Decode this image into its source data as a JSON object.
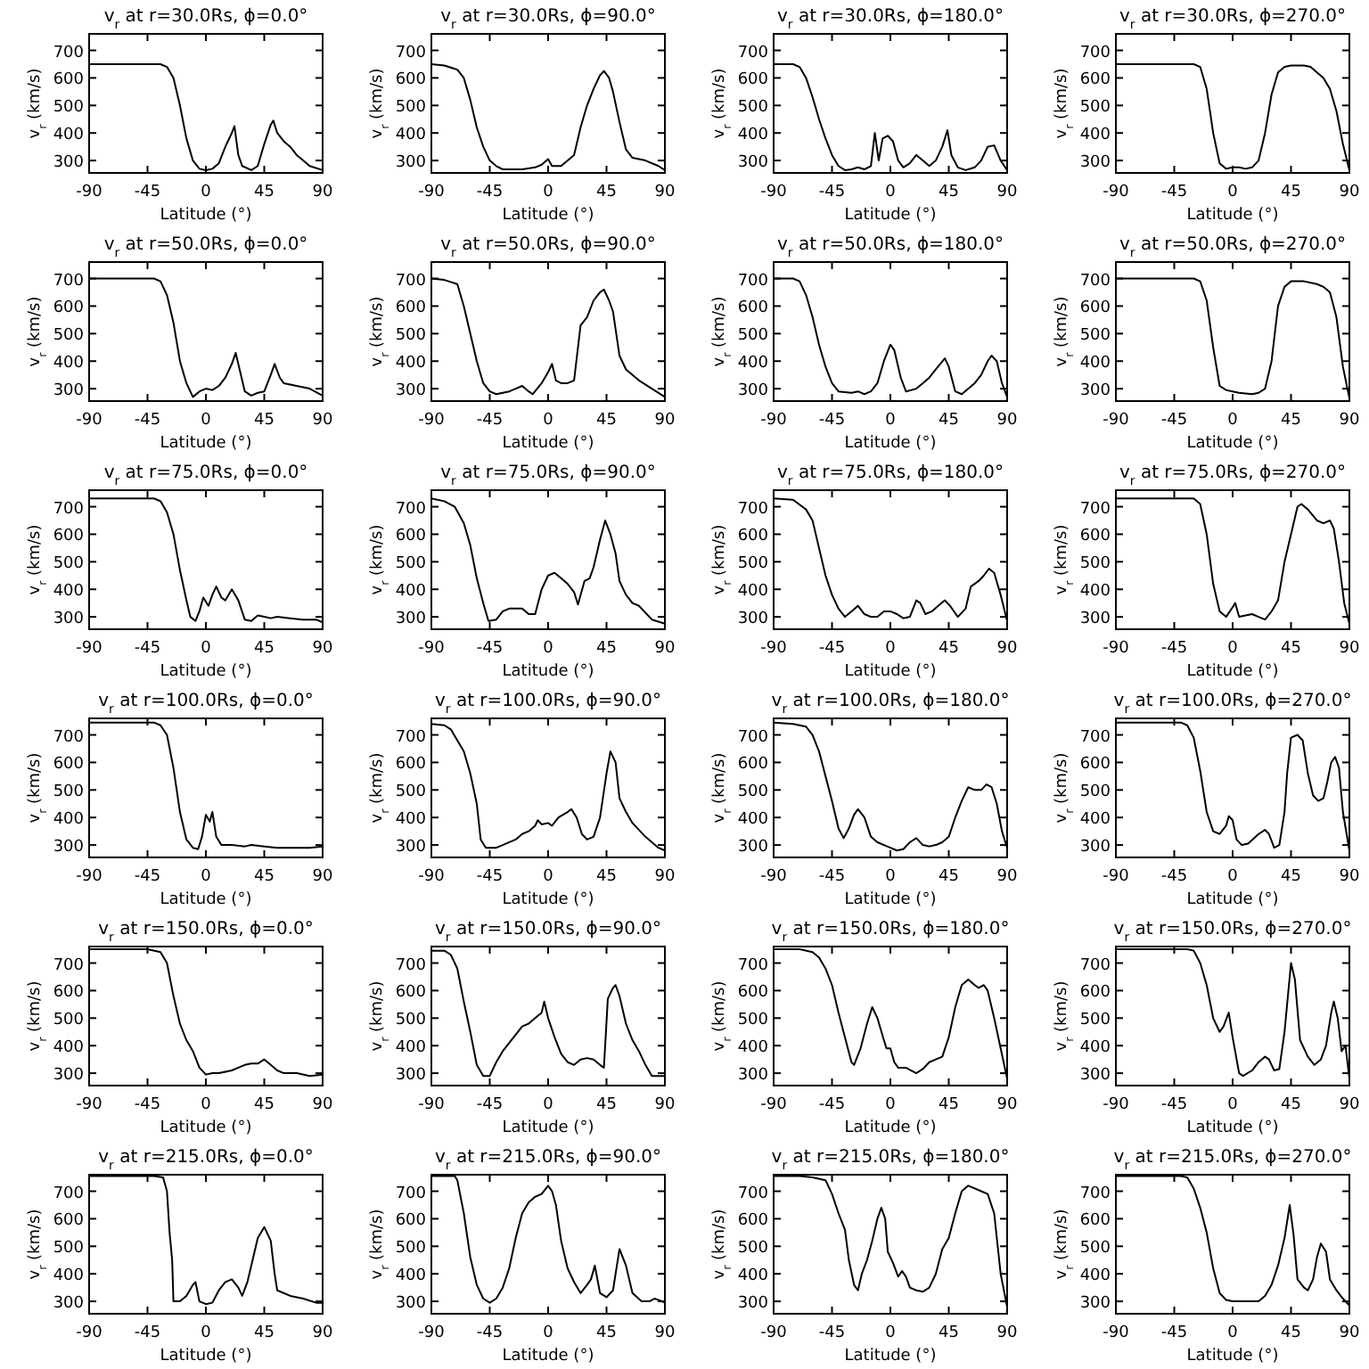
{
  "chart_data": [
    {
      "type": "line",
      "title": "v$_{r}$ at r=30.0Rs, ϕ=0.0°",
      "xlabel": "Latitude (°)",
      "ylabel": "v$_{r}$ (km/s)",
      "color": "#000000",
      "xlim": [
        -90,
        90
      ],
      "ylim": [
        255,
        760
      ],
      "xticks": [
        -90,
        -45,
        0,
        45,
        90
      ],
      "yticks": [
        300,
        400,
        500,
        600,
        700
      ],
      "x": [
        -90,
        -35,
        -30,
        -25,
        -20,
        -15,
        -10,
        -5,
        0,
        5,
        10,
        15,
        20,
        22,
        25,
        28,
        35,
        40,
        45,
        50,
        52,
        55,
        60,
        65,
        70,
        75,
        80,
        90
      ],
      "values": [
        650,
        650,
        640,
        600,
        500,
        380,
        300,
        270,
        265,
        270,
        290,
        350,
        400,
        425,
        320,
        280,
        265,
        280,
        360,
        430,
        445,
        400,
        370,
        350,
        320,
        300,
        280,
        265
      ]
    },
    {
      "type": "line",
      "title": "v$_{r}$ at r=30.0Rs, ϕ=90.0°",
      "xlabel": "Latitude (°)",
      "ylabel": "v$_{r}$ (km/s)",
      "color": "#000000",
      "xlim": [
        -90,
        90
      ],
      "ylim": [
        255,
        760
      ],
      "xticks": [
        -90,
        -45,
        0,
        45,
        90
      ],
      "yticks": [
        300,
        400,
        500,
        600,
        700
      ],
      "x": [
        -90,
        -80,
        -70,
        -65,
        -60,
        -55,
        -50,
        -45,
        -40,
        -35,
        -20,
        -10,
        -5,
        0,
        3,
        10,
        20,
        25,
        30,
        35,
        40,
        43,
        47,
        50,
        55,
        60,
        65,
        75,
        85,
        90
      ],
      "values": [
        650,
        645,
        630,
        600,
        520,
        420,
        350,
        300,
        280,
        268,
        268,
        275,
        285,
        305,
        280,
        280,
        320,
        420,
        500,
        560,
        610,
        625,
        600,
        550,
        440,
        340,
        310,
        300,
        280,
        265
      ]
    },
    {
      "type": "line",
      "title": "v$_{r}$ at r=30.0Rs, ϕ=180.0°",
      "xlabel": "Latitude (°)",
      "ylabel": "v$_{r}$ (km/s)",
      "color": "#000000",
      "xlim": [
        -90,
        90
      ],
      "ylim": [
        255,
        760
      ],
      "xticks": [
        -90,
        -45,
        0,
        45,
        90
      ],
      "yticks": [
        300,
        400,
        500,
        600,
        700
      ],
      "x": [
        -90,
        -75,
        -70,
        -65,
        -60,
        -55,
        -50,
        -45,
        -40,
        -35,
        -30,
        -25,
        -20,
        -15,
        -12,
        -9,
        -6,
        -2,
        2,
        6,
        10,
        15,
        20,
        25,
        30,
        35,
        40,
        44,
        47,
        52,
        58,
        65,
        70,
        75,
        80,
        85,
        90
      ],
      "values": [
        650,
        650,
        640,
        600,
        530,
        450,
        380,
        320,
        280,
        265,
        268,
        275,
        268,
        280,
        400,
        300,
        380,
        390,
        370,
        300,
        275,
        290,
        320,
        300,
        280,
        300,
        350,
        410,
        320,
        275,
        265,
        275,
        300,
        350,
        355,
        300,
        265
      ]
    },
    {
      "type": "line",
      "title": "v$_{r}$ at r=30.0Rs, ϕ=270.0°",
      "xlabel": "Latitude (°)",
      "ylabel": "v$_{r}$ (km/s)",
      "color": "#000000",
      "xlim": [
        -90,
        90
      ],
      "ylim": [
        255,
        760
      ],
      "xticks": [
        -90,
        -45,
        0,
        45,
        90
      ],
      "yticks": [
        300,
        400,
        500,
        600,
        700
      ],
      "x": [
        -90,
        -30,
        -25,
        -20,
        -15,
        -10,
        -5,
        0,
        5,
        10,
        15,
        20,
        25,
        30,
        35,
        40,
        45,
        55,
        60,
        65,
        70,
        75,
        80,
        85,
        90
      ],
      "values": [
        650,
        650,
        640,
        560,
        400,
        290,
        270,
        275,
        275,
        270,
        275,
        300,
        400,
        540,
        620,
        640,
        645,
        645,
        640,
        620,
        600,
        560,
        480,
        360,
        265
      ]
    },
    {
      "type": "line",
      "title": "v$_{r}$ at r=50.0Rs, ϕ=0.0°",
      "xlabel": "Latitude (°)",
      "ylabel": "v$_{r}$ (km/s)",
      "color": "#000000",
      "xlim": [
        -90,
        90
      ],
      "ylim": [
        255,
        760
      ],
      "xticks": [
        -90,
        -45,
        0,
        45,
        90
      ],
      "yticks": [
        300,
        400,
        500,
        600,
        700
      ],
      "x": [
        -90,
        -40,
        -35,
        -30,
        -25,
        -20,
        -15,
        -10,
        -5,
        0,
        5,
        10,
        15,
        20,
        23,
        26,
        30,
        35,
        40,
        45,
        50,
        53,
        57,
        60,
        70,
        80,
        90
      ],
      "values": [
        700,
        700,
        690,
        640,
        540,
        400,
        320,
        270,
        290,
        300,
        295,
        310,
        340,
        390,
        430,
        370,
        290,
        275,
        285,
        290,
        350,
        390,
        340,
        320,
        310,
        300,
        275
      ]
    },
    {
      "type": "line",
      "title": "v$_{r}$ at r=50.0Rs, ϕ=90.0°",
      "xlabel": "Latitude (°)",
      "ylabel": "v$_{r}$ (km/s)",
      "color": "#000000",
      "xlim": [
        -90,
        90
      ],
      "ylim": [
        255,
        760
      ],
      "xticks": [
        -90,
        -45,
        0,
        45,
        90
      ],
      "yticks": [
        300,
        400,
        500,
        600,
        700
      ],
      "x": [
        -90,
        -80,
        -70,
        -65,
        -60,
        -55,
        -50,
        -45,
        -40,
        -30,
        -25,
        -20,
        -15,
        -12,
        -5,
        0,
        3,
        6,
        10,
        15,
        20,
        25,
        30,
        35,
        40,
        43,
        47,
        50,
        55,
        60,
        70,
        80,
        90
      ],
      "values": [
        700,
        695,
        680,
        600,
        500,
        400,
        320,
        290,
        280,
        290,
        300,
        310,
        290,
        280,
        320,
        360,
        390,
        330,
        320,
        320,
        330,
        530,
        560,
        620,
        650,
        660,
        620,
        580,
        420,
        370,
        330,
        300,
        270
      ]
    },
    {
      "type": "line",
      "title": "v$_{r}$ at r=50.0Rs, ϕ=180.0°",
      "xlabel": "Latitude (°)",
      "ylabel": "v$_{r}$ (km/s)",
      "color": "#000000",
      "xlim": [
        -90,
        90
      ],
      "ylim": [
        255,
        760
      ],
      "xticks": [
        -90,
        -45,
        0,
        45,
        90
      ],
      "yticks": [
        300,
        400,
        500,
        600,
        700
      ],
      "x": [
        -90,
        -75,
        -70,
        -65,
        -60,
        -55,
        -50,
        -45,
        -40,
        -30,
        -25,
        -20,
        -15,
        -10,
        -5,
        0,
        3,
        8,
        12,
        20,
        25,
        30,
        35,
        42,
        45,
        50,
        55,
        65,
        70,
        75,
        78,
        82,
        86,
        90
      ],
      "values": [
        700,
        700,
        690,
        640,
        560,
        460,
        380,
        320,
        290,
        285,
        290,
        280,
        290,
        320,
        400,
        460,
        440,
        340,
        290,
        300,
        320,
        340,
        370,
        410,
        380,
        290,
        280,
        320,
        350,
        400,
        420,
        400,
        320,
        270
      ]
    },
    {
      "type": "line",
      "title": "v$_{r}$ at r=50.0Rs, ϕ=270.0°",
      "xlabel": "Latitude (°)",
      "ylabel": "v$_{r}$ (km/s)",
      "color": "#000000",
      "xlim": [
        -90,
        90
      ],
      "ylim": [
        255,
        760
      ],
      "xticks": [
        -90,
        -45,
        0,
        45,
        90
      ],
      "yticks": [
        300,
        400,
        500,
        600,
        700
      ],
      "x": [
        -90,
        -30,
        -25,
        -20,
        -15,
        -10,
        -5,
        0,
        5,
        15,
        20,
        25,
        30,
        35,
        40,
        45,
        55,
        65,
        70,
        75,
        80,
        85,
        90
      ],
      "values": [
        700,
        700,
        690,
        620,
        450,
        310,
        295,
        290,
        285,
        280,
        285,
        300,
        400,
        600,
        670,
        690,
        690,
        680,
        670,
        650,
        560,
        380,
        265
      ]
    },
    {
      "type": "line",
      "title": "v$_{r}$ at r=75.0Rs, ϕ=0.0°",
      "xlabel": "Latitude (°)",
      "ylabel": "v$_{r}$ (km/s)",
      "color": "#000000",
      "xlim": [
        -90,
        90
      ],
      "ylim": [
        255,
        760
      ],
      "xticks": [
        -90,
        -45,
        0,
        45,
        90
      ],
      "yticks": [
        300,
        400,
        500,
        600,
        700
      ],
      "x": [
        -90,
        -40,
        -35,
        -30,
        -25,
        -20,
        -15,
        -12,
        -8,
        -5,
        -2,
        2,
        5,
        8,
        12,
        15,
        20,
        25,
        30,
        35,
        40,
        45,
        50,
        55,
        65,
        75,
        85,
        90
      ],
      "values": [
        730,
        730,
        720,
        680,
        600,
        470,
        360,
        300,
        285,
        320,
        370,
        340,
        380,
        410,
        370,
        360,
        400,
        360,
        290,
        285,
        305,
        300,
        295,
        300,
        295,
        290,
        290,
        280
      ]
    },
    {
      "type": "line",
      "title": "v$_{r}$ at r=75.0Rs, ϕ=90.0°",
      "xlabel": "Latitude (°)",
      "ylabel": "v$_{r}$ (km/s)",
      "color": "#000000",
      "xlim": [
        -90,
        90
      ],
      "ylim": [
        255,
        760
      ],
      "xticks": [
        -90,
        -45,
        0,
        45,
        90
      ],
      "yticks": [
        300,
        400,
        500,
        600,
        700
      ],
      "x": [
        -90,
        -80,
        -72,
        -65,
        -60,
        -55,
        -50,
        -46,
        -40,
        -35,
        -30,
        -20,
        -15,
        -10,
        -5,
        0,
        5,
        10,
        15,
        20,
        23,
        28,
        32,
        35,
        40,
        44,
        48,
        52,
        55,
        60,
        65,
        70,
        80,
        90
      ],
      "values": [
        730,
        720,
        700,
        640,
        560,
        440,
        350,
        285,
        290,
        320,
        330,
        330,
        310,
        310,
        400,
        450,
        460,
        440,
        420,
        390,
        345,
        430,
        440,
        480,
        580,
        650,
        600,
        530,
        430,
        380,
        350,
        340,
        290,
        275
      ]
    },
    {
      "type": "line",
      "title": "v$_{r}$ at r=75.0Rs, ϕ=180.0°",
      "xlabel": "Latitude (°)",
      "ylabel": "v$_{r}$ (km/s)",
      "color": "#000000",
      "xlim": [
        -90,
        90
      ],
      "ylim": [
        255,
        760
      ],
      "xticks": [
        -90,
        -45,
        0,
        45,
        90
      ],
      "yticks": [
        300,
        400,
        500,
        600,
        700
      ],
      "x": [
        -90,
        -75,
        -65,
        -60,
        -55,
        -50,
        -45,
        -40,
        -35,
        -30,
        -25,
        -20,
        -15,
        -10,
        -5,
        0,
        5,
        10,
        15,
        20,
        23,
        27,
        32,
        38,
        42,
        46,
        52,
        58,
        62,
        68,
        72,
        76,
        80,
        85,
        90
      ],
      "values": [
        730,
        725,
        690,
        650,
        550,
        450,
        380,
        330,
        300,
        320,
        340,
        310,
        300,
        300,
        320,
        320,
        310,
        295,
        300,
        360,
        350,
        310,
        320,
        345,
        360,
        340,
        300,
        330,
        410,
        430,
        450,
        475,
        460,
        380,
        285
      ]
    },
    {
      "type": "line",
      "title": "v$_{r}$ at r=75.0Rs, ϕ=270.0°",
      "xlabel": "Latitude (°)",
      "ylabel": "v$_{r}$ (km/s)",
      "color": "#000000",
      "xlim": [
        -90,
        90
      ],
      "ylim": [
        255,
        760
      ],
      "xticks": [
        -90,
        -45,
        0,
        45,
        90
      ],
      "yticks": [
        300,
        400,
        500,
        600,
        700
      ],
      "x": [
        -90,
        -30,
        -25,
        -20,
        -15,
        -10,
        -5,
        0,
        2,
        5,
        10,
        15,
        20,
        25,
        30,
        35,
        40,
        45,
        50,
        53,
        58,
        65,
        70,
        75,
        78,
        82,
        86,
        90
      ],
      "values": [
        730,
        730,
        710,
        600,
        420,
        320,
        300,
        335,
        350,
        300,
        305,
        310,
        300,
        290,
        320,
        360,
        500,
        600,
        700,
        710,
        690,
        650,
        640,
        650,
        620,
        500,
        350,
        275
      ]
    },
    {
      "type": "line",
      "title": "v$_{r}$ at r=100.0Rs, ϕ=0.0°",
      "xlabel": "Latitude (°)",
      "ylabel": "v$_{r}$ (km/s)",
      "color": "#000000",
      "xlim": [
        -90,
        90
      ],
      "ylim": [
        255,
        760
      ],
      "xticks": [
        -90,
        -45,
        0,
        45,
        90
      ],
      "yticks": [
        300,
        400,
        500,
        600,
        700
      ],
      "x": [
        -90,
        -40,
        -35,
        -30,
        -25,
        -20,
        -15,
        -10,
        -6,
        -3,
        0,
        3,
        5,
        8,
        12,
        20,
        30,
        35,
        45,
        55,
        70,
        80,
        90
      ],
      "values": [
        745,
        745,
        735,
        700,
        580,
        420,
        320,
        290,
        285,
        330,
        410,
        385,
        420,
        330,
        300,
        300,
        295,
        300,
        295,
        290,
        290,
        290,
        295
      ]
    },
    {
      "type": "line",
      "title": "v$_{r}$ at r=100.0Rs, ϕ=90.0°",
      "xlabel": "Latitude (°)",
      "ylabel": "v$_{r}$ (km/s)",
      "color": "#000000",
      "xlim": [
        -90,
        90
      ],
      "ylim": [
        255,
        760
      ],
      "xticks": [
        -90,
        -45,
        0,
        45,
        90
      ],
      "yticks": [
        300,
        400,
        500,
        600,
        700
      ],
      "x": [
        -90,
        -80,
        -75,
        -70,
        -65,
        -60,
        -55,
        -52,
        -48,
        -40,
        -35,
        -25,
        -20,
        -15,
        -10,
        -8,
        -5,
        0,
        3,
        8,
        15,
        18,
        22,
        26,
        30,
        35,
        40,
        45,
        48,
        52,
        55,
        60,
        65,
        75,
        85,
        90
      ],
      "values": [
        740,
        735,
        720,
        680,
        640,
        560,
        450,
        320,
        290,
        290,
        300,
        320,
        340,
        350,
        370,
        390,
        375,
        380,
        370,
        400,
        420,
        430,
        400,
        340,
        320,
        330,
        400,
        560,
        640,
        600,
        470,
        420,
        380,
        330,
        290,
        280
      ]
    },
    {
      "type": "line",
      "title": "v$_{r}$ at r=100.0Rs, ϕ=180.0°",
      "xlabel": "Latitude (°)",
      "ylabel": "v$_{r}$ (km/s)",
      "color": "#000000",
      "xlim": [
        -90,
        90
      ],
      "ylim": [
        255,
        760
      ],
      "xticks": [
        -90,
        -45,
        0,
        45,
        90
      ],
      "yticks": [
        300,
        400,
        500,
        600,
        700
      ],
      "x": [
        -90,
        -75,
        -65,
        -60,
        -55,
        -50,
        -45,
        -40,
        -36,
        -32,
        -28,
        -25,
        -20,
        -15,
        -10,
        -5,
        0,
        5,
        10,
        15,
        20,
        25,
        30,
        35,
        40,
        45,
        50,
        55,
        60,
        65,
        70,
        74,
        78,
        82,
        86,
        90
      ],
      "values": [
        745,
        740,
        730,
        700,
        640,
        550,
        460,
        360,
        325,
        360,
        410,
        430,
        400,
        330,
        310,
        300,
        290,
        280,
        285,
        310,
        325,
        300,
        295,
        300,
        310,
        330,
        400,
        460,
        510,
        500,
        500,
        520,
        510,
        450,
        350,
        290
      ]
    },
    {
      "type": "line",
      "title": "v$_{r}$ at r=100.0Rs, ϕ=270.0°",
      "xlabel": "Latitude (°)",
      "ylabel": "v$_{r}$ (km/s)",
      "color": "#000000",
      "xlim": [
        -90,
        90
      ],
      "ylim": [
        255,
        760
      ],
      "xticks": [
        -90,
        -45,
        0,
        45,
        90
      ],
      "yticks": [
        300,
        400,
        500,
        600,
        700
      ],
      "x": [
        -90,
        -40,
        -35,
        -30,
        -25,
        -20,
        -15,
        -10,
        -5,
        -3,
        0,
        3,
        7,
        12,
        20,
        25,
        28,
        32,
        36,
        40,
        42,
        45,
        50,
        54,
        58,
        62,
        66,
        70,
        73,
        76,
        79,
        82,
        85,
        90
      ],
      "values": [
        745,
        745,
        735,
        690,
        570,
        420,
        350,
        340,
        370,
        405,
        390,
        320,
        300,
        305,
        340,
        355,
        340,
        290,
        300,
        420,
        560,
        690,
        700,
        680,
        560,
        480,
        460,
        470,
        530,
        600,
        620,
        580,
        420,
        280
      ]
    },
    {
      "type": "line",
      "title": "v$_{r}$ at r=150.0Rs, ϕ=0.0°",
      "xlabel": "Latitude (°)",
      "ylabel": "v$_{r}$ (km/s)",
      "color": "#000000",
      "xlim": [
        -90,
        90
      ],
      "ylim": [
        255,
        760
      ],
      "xticks": [
        -90,
        -45,
        0,
        45,
        90
      ],
      "yticks": [
        300,
        400,
        500,
        600,
        700
      ],
      "x": [
        -90,
        -45,
        -35,
        -30,
        -25,
        -20,
        -15,
        -10,
        -5,
        0,
        5,
        10,
        20,
        25,
        30,
        35,
        40,
        45,
        50,
        55,
        60,
        70,
        80,
        90
      ],
      "values": [
        750,
        750,
        740,
        700,
        580,
        480,
        420,
        380,
        320,
        295,
        300,
        300,
        310,
        320,
        330,
        335,
        335,
        350,
        330,
        310,
        300,
        300,
        290,
        295
      ]
    },
    {
      "type": "line",
      "title": "v$_{r}$ at r=150.0Rs, ϕ=90.0°",
      "xlabel": "Latitude (°)",
      "ylabel": "v$_{r}$ (km/s)",
      "color": "#000000",
      "xlim": [
        -90,
        90
      ],
      "ylim": [
        255,
        760
      ],
      "xticks": [
        -90,
        -45,
        0,
        45,
        90
      ],
      "yticks": [
        300,
        400,
        500,
        600,
        700
      ],
      "x": [
        -90,
        -80,
        -75,
        -70,
        -65,
        -60,
        -55,
        -50,
        -45,
        -40,
        -35,
        -30,
        -25,
        -20,
        -15,
        -10,
        -5,
        -3,
        0,
        5,
        10,
        15,
        20,
        25,
        30,
        35,
        40,
        43,
        46,
        50,
        52,
        55,
        60,
        65,
        70,
        75,
        80,
        90
      ],
      "values": [
        745,
        745,
        730,
        680,
        560,
        450,
        330,
        290,
        290,
        340,
        380,
        410,
        440,
        470,
        480,
        500,
        520,
        560,
        500,
        430,
        370,
        340,
        330,
        350,
        355,
        350,
        330,
        320,
        570,
        610,
        620,
        580,
        480,
        420,
        380,
        330,
        290,
        290
      ]
    },
    {
      "type": "line",
      "title": "v$_{r}$ at r=150.0Rs, ϕ=180.0°",
      "xlabel": "Latitude (°)",
      "ylabel": "v$_{r}$ (km/s)",
      "color": "#000000",
      "xlim": [
        -90,
        90
      ],
      "ylim": [
        255,
        760
      ],
      "xticks": [
        -90,
        -45,
        0,
        45,
        90
      ],
      "yticks": [
        300,
        400,
        500,
        600,
        700
      ],
      "x": [
        -90,
        -70,
        -60,
        -55,
        -50,
        -45,
        -40,
        -35,
        -30,
        -28,
        -23,
        -18,
        -14,
        -10,
        -5,
        -3,
        0,
        3,
        6,
        12,
        16,
        20,
        25,
        30,
        35,
        40,
        45,
        50,
        55,
        60,
        65,
        68,
        72,
        75,
        80,
        85,
        90
      ],
      "values": [
        750,
        750,
        740,
        720,
        680,
        620,
        520,
        430,
        340,
        330,
        390,
        480,
        540,
        500,
        420,
        390,
        390,
        340,
        320,
        320,
        310,
        300,
        315,
        340,
        350,
        360,
        430,
        540,
        620,
        640,
        620,
        610,
        620,
        600,
        500,
        390,
        280
      ]
    },
    {
      "type": "line",
      "title": "v$_{r}$ at r=150.0Rs, ϕ=270.0°",
      "xlabel": "Latitude (°)",
      "ylabel": "v$_{r}$ (km/s)",
      "color": "#000000",
      "xlim": [
        -90,
        90
      ],
      "ylim": [
        255,
        760
      ],
      "xticks": [
        -90,
        -45,
        0,
        45,
        90
      ],
      "yticks": [
        300,
        400,
        500,
        600,
        700
      ],
      "x": [
        -90,
        -35,
        -30,
        -25,
        -20,
        -15,
        -10,
        -7,
        -3,
        0,
        5,
        8,
        15,
        20,
        25,
        28,
        32,
        36,
        40,
        43,
        45,
        48,
        52,
        58,
        63,
        68,
        72,
        76,
        78,
        81,
        84,
        87,
        90
      ],
      "values": [
        750,
        750,
        745,
        700,
        620,
        500,
        450,
        470,
        520,
        430,
        300,
        290,
        310,
        340,
        360,
        350,
        310,
        315,
        450,
        600,
        700,
        640,
        420,
        360,
        330,
        350,
        400,
        520,
        560,
        500,
        380,
        400,
        280
      ]
    },
    {
      "type": "line",
      "title": "v$_{r}$ at r=215.0Rs, ϕ=0.0°",
      "xlabel": "Latitude (°)",
      "ylabel": "v$_{r}$ (km/s)",
      "color": "#000000",
      "xlim": [
        -90,
        90
      ],
      "ylim": [
        255,
        760
      ],
      "xticks": [
        -90,
        -45,
        0,
        45,
        90
      ],
      "yticks": [
        300,
        400,
        500,
        600,
        700
      ],
      "x": [
        -90,
        -40,
        -33,
        -30,
        -28,
        -26,
        -25,
        -20,
        -15,
        -10,
        -8,
        -5,
        0,
        5,
        10,
        15,
        20,
        25,
        28,
        32,
        35,
        40,
        45,
        50,
        53,
        55,
        65,
        75,
        85,
        90
      ],
      "values": [
        755,
        755,
        750,
        700,
        550,
        450,
        300,
        300,
        320,
        360,
        370,
        300,
        290,
        295,
        340,
        370,
        380,
        350,
        320,
        370,
        430,
        530,
        570,
        520,
        400,
        340,
        320,
        310,
        295,
        295
      ]
    },
    {
      "type": "line",
      "title": "v$_{r}$ at r=215.0Rs, ϕ=90.0°",
      "xlabel": "Latitude (°)",
      "ylabel": "v$_{r}$ (km/s)",
      "color": "#000000",
      "xlim": [
        -90,
        90
      ],
      "ylim": [
        255,
        760
      ],
      "xticks": [
        -90,
        -45,
        0,
        45,
        90
      ],
      "yticks": [
        300,
        400,
        500,
        600,
        700
      ],
      "x": [
        -90,
        -72,
        -70,
        -65,
        -60,
        -55,
        -50,
        -45,
        -40,
        -35,
        -30,
        -25,
        -20,
        -15,
        -10,
        -5,
        0,
        3,
        6,
        10,
        15,
        20,
        25,
        30,
        33,
        36,
        40,
        45,
        50,
        55,
        60,
        65,
        72,
        78,
        82,
        88,
        90
      ],
      "values": [
        755,
        755,
        740,
        620,
        460,
        360,
        310,
        295,
        310,
        350,
        420,
        530,
        620,
        660,
        680,
        690,
        720,
        700,
        650,
        520,
        420,
        370,
        330,
        360,
        380,
        430,
        330,
        315,
        340,
        490,
        430,
        330,
        300,
        300,
        310,
        300,
        295
      ]
    },
    {
      "type": "line",
      "title": "v$_{r}$ at r=215.0Rs, ϕ=180.0°",
      "xlabel": "Latitude (°)",
      "ylabel": "v$_{r}$ (km/s)",
      "color": "#000000",
      "xlim": [
        -90,
        90
      ],
      "ylim": [
        255,
        760
      ],
      "xticks": [
        -90,
        -45,
        0,
        45,
        90
      ],
      "yticks": [
        300,
        400,
        500,
        600,
        700
      ],
      "x": [
        -90,
        -70,
        -60,
        -50,
        -45,
        -40,
        -35,
        -32,
        -28,
        -25,
        -22,
        -18,
        -14,
        -10,
        -7,
        -4,
        -2,
        2,
        6,
        9,
        12,
        15,
        20,
        25,
        30,
        35,
        40,
        45,
        50,
        55,
        60,
        65,
        70,
        75,
        80,
        85,
        90
      ],
      "values": [
        755,
        755,
        750,
        740,
        690,
        620,
        560,
        450,
        360,
        340,
        400,
        450,
        520,
        600,
        640,
        600,
        480,
        440,
        390,
        410,
        390,
        350,
        340,
        335,
        350,
        400,
        490,
        530,
        620,
        700,
        720,
        710,
        700,
        690,
        620,
        400,
        280
      ]
    },
    {
      "type": "line",
      "title": "v$_{r}$ at r=215.0Rs, ϕ=270.0°",
      "xlabel": "Latitude (°)",
      "ylabel": "v$_{r}$ (km/s)",
      "color": "#000000",
      "xlim": [
        -90,
        90
      ],
      "ylim": [
        255,
        760
      ],
      "xticks": [
        -90,
        -45,
        0,
        45,
        90
      ],
      "yticks": [
        300,
        400,
        500,
        600,
        700
      ],
      "x": [
        -90,
        -40,
        -35,
        -30,
        -25,
        -20,
        -15,
        -10,
        -5,
        0,
        10,
        20,
        25,
        30,
        35,
        40,
        44,
        47,
        50,
        55,
        58,
        62,
        65,
        68,
        72,
        75,
        80,
        85,
        90
      ],
      "values": [
        755,
        755,
        750,
        710,
        640,
        550,
        420,
        330,
        305,
        300,
        300,
        300,
        320,
        360,
        430,
        530,
        650,
        540,
        380,
        350,
        340,
        380,
        460,
        510,
        480,
        380,
        340,
        310,
        285
      ]
    }
  ]
}
